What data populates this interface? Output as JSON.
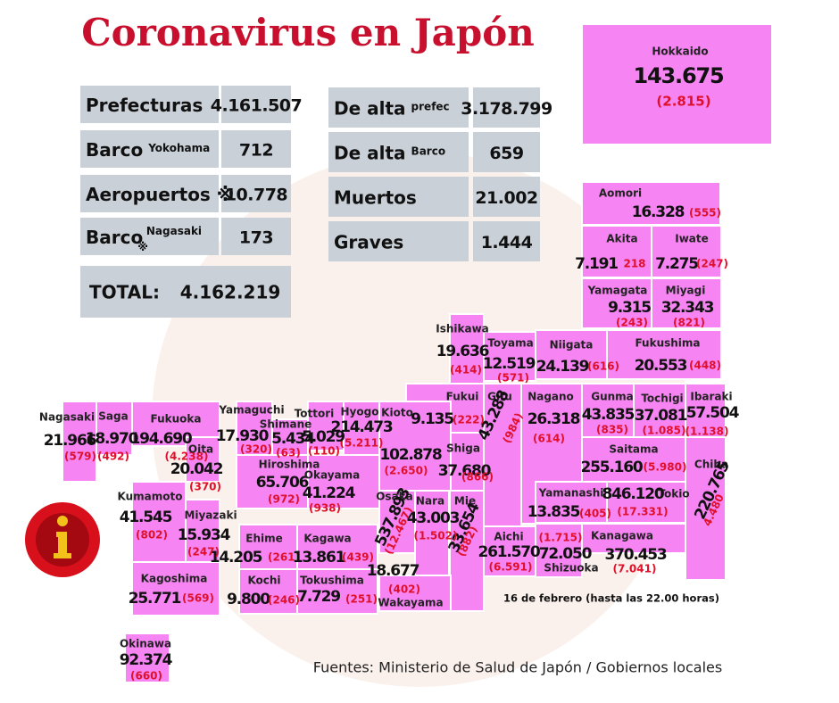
{
  "header": {
    "title": "Coronavirus en Japón"
  },
  "stats_left": [
    {
      "label": "Prefecturas",
      "value": "4.161.507"
    },
    {
      "label": "Barco",
      "sub": "Yokohama",
      "value": "712"
    },
    {
      "label": "Aeropuertos ※",
      "value": "10.778"
    },
    {
      "label": "Barco",
      "mark": "※",
      "sub": "Nagasaki",
      "value": "173"
    }
  ],
  "total": {
    "label": "TOTAL:",
    "value": "4.162.219"
  },
  "stats_right": [
    {
      "label": "De alta",
      "sub": "prefec",
      "value": "3.178.799"
    },
    {
      "label": "De alta",
      "sub": "Barco",
      "value": "659"
    },
    {
      "label": "Muertos",
      "value": "21.002"
    },
    {
      "label": "Graves",
      "value": "1.444"
    }
  ],
  "prefectures": [
    {
      "name": "Hokkaido",
      "cases": "143.675",
      "deaths": "(2.815)"
    },
    {
      "name": "Aomori",
      "cases": "16.328",
      "deaths": "(555)"
    },
    {
      "name": "Akita",
      "cases": "7.191",
      "deaths": "218"
    },
    {
      "name": "Iwate",
      "cases": "7.275",
      "deaths": "(247)"
    },
    {
      "name": "Yamagata",
      "cases": "9.315",
      "deaths": "(243)"
    },
    {
      "name": "Miyagi",
      "cases": "32.343",
      "deaths": "(821)"
    },
    {
      "name": "Niigata",
      "cases": "24.139",
      "deaths": "(616)"
    },
    {
      "name": "Fukushima",
      "cases": "20.553",
      "deaths": "(448)"
    },
    {
      "name": "Ishikawa",
      "cases": "19.636",
      "deaths": "(414)"
    },
    {
      "name": "Toyama",
      "cases": "12.519",
      "deaths": "(571)"
    },
    {
      "name": "Fukui",
      "cases": "9.135",
      "deaths": "(222)"
    },
    {
      "name": "Gifu",
      "cases": "43.288",
      "deaths": "(984)"
    },
    {
      "name": "Nagano",
      "cases": "26.318",
      "deaths": "(614)"
    },
    {
      "name": "Gunma",
      "cases": "43.835",
      "deaths": "(835)"
    },
    {
      "name": "Tochigi",
      "cases": "37.081",
      "deaths": "(1.085)"
    },
    {
      "name": "Ibaraki",
      "cases": "57.504",
      "deaths": "(1.138)"
    },
    {
      "name": "Saitama",
      "cases": "255.160",
      "deaths": "(5.980)"
    },
    {
      "name": "Chiba",
      "cases": "220.765",
      "deaths": "4.480"
    },
    {
      "name": "Tokio",
      "cases": "846.120",
      "deaths": "(17.331)"
    },
    {
      "name": "Yamanashi",
      "cases": "13.835",
      "deaths": "(405)"
    },
    {
      "name": "Kanagawa",
      "cases": "370.453",
      "deaths": "(7.041)"
    },
    {
      "name": "Shizuoka",
      "cases": "72.050",
      "deaths": "(1.715)"
    },
    {
      "name": "Aichi",
      "cases": "261.570",
      "deaths": "(6.591)"
    },
    {
      "name": "Mie",
      "cases": "33.654",
      "deaths": "(882)"
    },
    {
      "name": "Shiga",
      "cases": "37.680",
      "deaths": "(866)"
    },
    {
      "name": "Nara",
      "cases": "43.003",
      "deaths": "(1.502)"
    },
    {
      "name": "Osaka",
      "cases": "537.893",
      "deaths": "(12.467)"
    },
    {
      "name": "Kioto",
      "cases": "102.878",
      "deaths": "(2.650)"
    },
    {
      "name": "Hyogo",
      "cases": "214.473",
      "deaths": "(5.211)"
    },
    {
      "name": "Wakayama",
      "cases": "18.677",
      "deaths": "(402)"
    },
    {
      "name": "Tottori",
      "cases": "5.029",
      "deaths": "(110)"
    },
    {
      "name": "Shimane",
      "cases": "5.434",
      "deaths": "(63)"
    },
    {
      "name": "Yamaguchi",
      "cases": "17.930",
      "deaths": "(320)"
    },
    {
      "name": "Hiroshima",
      "cases": "65.706",
      "deaths": "(972)"
    },
    {
      "name": "Okayama",
      "cases": "41.224",
      "deaths": "(938)"
    },
    {
      "name": "Ehime",
      "cases": "14.205",
      "deaths": "(261)"
    },
    {
      "name": "Kagawa",
      "cases": "13.861",
      "deaths": "(439)"
    },
    {
      "name": "Kochi",
      "cases": "9.800",
      "deaths": "(246)"
    },
    {
      "name": "Tokushima",
      "cases": "7.729",
      "deaths": "(251)"
    },
    {
      "name": "Nagasaki",
      "cases": "21.966",
      "deaths": "(579)"
    },
    {
      "name": "Saga",
      "cases": "18.970",
      "deaths": "(492)"
    },
    {
      "name": "Fukuoka",
      "cases": "194.690",
      "deaths": "(4.238)"
    },
    {
      "name": "Oita",
      "cases": "20.042",
      "deaths": "(370)"
    },
    {
      "name": "Kumamoto",
      "cases": "41.545",
      "deaths": "(802)"
    },
    {
      "name": "Miyazaki",
      "cases": "15.934",
      "deaths": "(247)"
    },
    {
      "name": "Kagoshima",
      "cases": "25.771",
      "deaths": "(569)"
    },
    {
      "name": "Okinawa",
      "cases": "92.374",
      "deaths": "(660)"
    }
  ],
  "date": "16 de febrero  (hasta las  22.00 horas)",
  "source": "Fuentes: Ministerio de Salud de Japón / Gobiernos locales"
}
